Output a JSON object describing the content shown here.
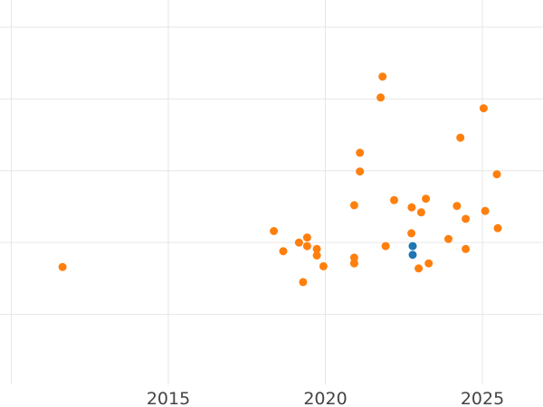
{
  "chart_data": {
    "type": "scatter",
    "title": "",
    "xlabel": "",
    "ylabel": "",
    "grid": true,
    "legend": false,
    "colors": {
      "background": "#ffffff",
      "gridline": "#e6e6e6",
      "tick_label": "#444444",
      "series_orange": "#ff7f0e",
      "series_blue": "#1f77b4"
    },
    "x_axis": {
      "tick_labels": [
        "2015",
        "2020",
        "2025"
      ],
      "tick_values": [
        2015,
        2020,
        2025
      ],
      "gridline_values": [
        2010,
        2015,
        2020,
        2025
      ],
      "range": [
        2009.64,
        2026.93
      ]
    },
    "y_axis": {
      "tick_labels": [],
      "gridline_values": [
        1,
        2,
        3,
        4,
        5
      ],
      "range": [
        0,
        5.377
      ]
    },
    "series": [
      {
        "name": "orange",
        "color": "#ff7f0e",
        "points": [
          [
            2011.63,
            1.66
          ],
          [
            2018.36,
            2.16
          ],
          [
            2018.66,
            1.88
          ],
          [
            2019.16,
            2.0
          ],
          [
            2019.29,
            1.45
          ],
          [
            2019.42,
            2.07
          ],
          [
            2019.42,
            1.95
          ],
          [
            2019.73,
            1.91
          ],
          [
            2019.73,
            1.82
          ],
          [
            2019.94,
            1.67
          ],
          [
            2020.92,
            2.52
          ],
          [
            2020.92,
            1.79
          ],
          [
            2020.92,
            1.71
          ],
          [
            2021.1,
            3.25
          ],
          [
            2021.1,
            2.99
          ],
          [
            2021.76,
            4.02
          ],
          [
            2021.82,
            4.31
          ],
          [
            2021.92,
            1.95
          ],
          [
            2022.19,
            2.59
          ],
          [
            2022.74,
            2.13
          ],
          [
            2022.75,
            2.49
          ],
          [
            2022.97,
            1.64
          ],
          [
            2023.05,
            2.42
          ],
          [
            2023.2,
            2.61
          ],
          [
            2023.29,
            1.71
          ],
          [
            2023.92,
            2.05
          ],
          [
            2024.19,
            2.51
          ],
          [
            2024.3,
            3.46
          ],
          [
            2024.47,
            2.33
          ],
          [
            2024.47,
            1.91
          ],
          [
            2025.04,
            3.87
          ],
          [
            2025.09,
            2.44
          ],
          [
            2025.46,
            2.95
          ],
          [
            2025.49,
            2.2
          ]
        ]
      },
      {
        "name": "blue",
        "color": "#1f77b4",
        "points": [
          [
            2022.78,
            1.95
          ],
          [
            2022.78,
            1.83
          ]
        ]
      }
    ]
  }
}
